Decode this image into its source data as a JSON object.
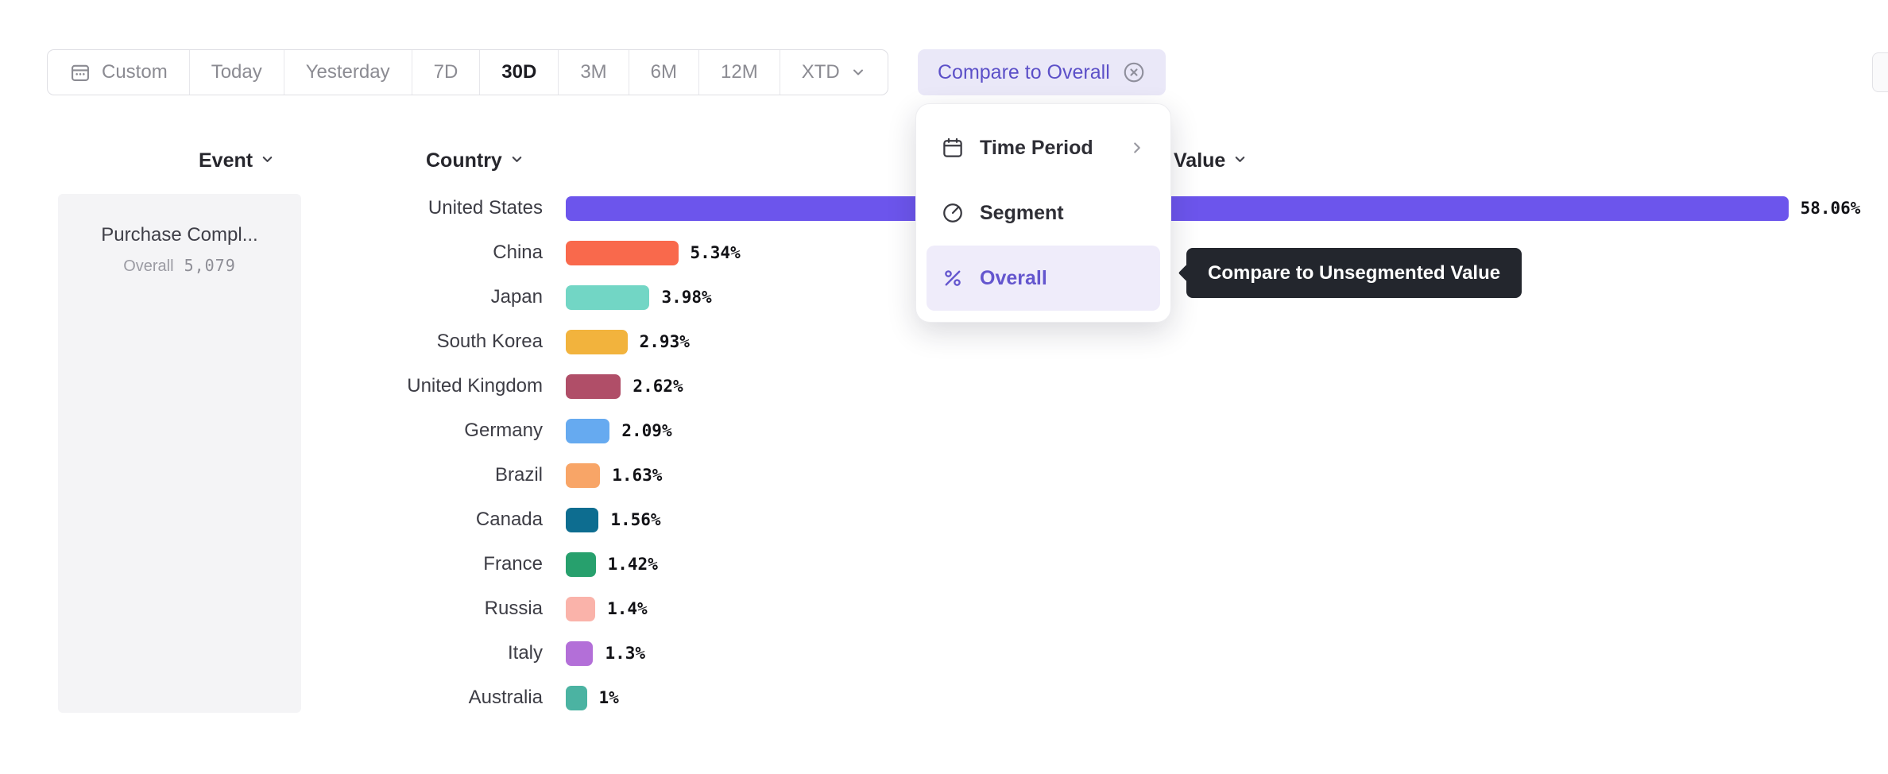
{
  "colors": {
    "accent": "#6456ce",
    "compare_text": "#5c50c8",
    "tooltip_bg": "#23262d",
    "us_bar": "#6c55ec"
  },
  "toolbar": {
    "date_ranges": [
      {
        "label": "Custom",
        "icon": "calendar-icon",
        "selected": false
      },
      {
        "label": "Today",
        "selected": false
      },
      {
        "label": "Yesterday",
        "selected": false
      },
      {
        "label": "7D",
        "selected": false
      },
      {
        "label": "30D",
        "selected": true
      },
      {
        "label": "3M",
        "selected": false
      },
      {
        "label": "6M",
        "selected": false
      },
      {
        "label": "12M",
        "selected": false
      },
      {
        "label": "XTD",
        "icon": "chevron-down-icon",
        "selected": false
      }
    ],
    "compare_button": {
      "label": "Compare to Overall",
      "icon": "circle-x-icon"
    }
  },
  "dropdown": {
    "items": [
      {
        "label": "Time Period",
        "icon": "calendar-icon",
        "has_submenu": true,
        "selected": false
      },
      {
        "label": "Segment",
        "icon": "segment-icon",
        "selected": false
      },
      {
        "label": "Overall",
        "icon": "percent-icon",
        "selected": true
      }
    ]
  },
  "tooltip": {
    "text": "Compare to Unsegmented Value"
  },
  "event_panel": {
    "header": "Event",
    "event_name": "Purchase Compl...",
    "overall_label": "Overall",
    "overall_value": "5,079"
  },
  "breakdown": {
    "country_header": "Country",
    "value_header": "Value",
    "rows": [
      {
        "country": "United States",
        "value": 58.06,
        "display": "58.06%",
        "color": "#6c55ec"
      },
      {
        "country": "China",
        "value": 5.34,
        "display": "5.34%",
        "color": "#f9694c"
      },
      {
        "country": "Japan",
        "value": 3.98,
        "display": "3.98%",
        "color": "#72d6c5"
      },
      {
        "country": "South Korea",
        "value": 2.93,
        "display": "2.93%",
        "color": "#f2b33d"
      },
      {
        "country": "United Kingdom",
        "value": 2.62,
        "display": "2.62%",
        "color": "#b04e68"
      },
      {
        "country": "Germany",
        "value": 2.09,
        "display": "2.09%",
        "color": "#66aaf0"
      },
      {
        "country": "Brazil",
        "value": 1.63,
        "display": "1.63%",
        "color": "#f8a567"
      },
      {
        "country": "Canada",
        "value": 1.56,
        "display": "1.56%",
        "color": "#0d6d90"
      },
      {
        "country": "France",
        "value": 1.42,
        "display": "1.42%",
        "color": "#27a06d"
      },
      {
        "country": "Russia",
        "value": 1.4,
        "display": "1.4%",
        "color": "#fab3aa"
      },
      {
        "country": "Italy",
        "value": 1.3,
        "display": "1.3%",
        "color": "#b36fd8"
      },
      {
        "country": "Australia",
        "value": 1.0,
        "display": "1%",
        "color": "#4bb3a2"
      }
    ]
  },
  "chart_data": {
    "type": "bar",
    "orientation": "horizontal",
    "title": "",
    "xlabel": "Value",
    "ylabel": "Country",
    "categories": [
      "United States",
      "China",
      "Japan",
      "South Korea",
      "United Kingdom",
      "Germany",
      "Brazil",
      "Canada",
      "France",
      "Russia",
      "Italy",
      "Australia"
    ],
    "values": [
      58.06,
      5.34,
      3.98,
      2.93,
      2.62,
      2.09,
      1.63,
      1.56,
      1.42,
      1.4,
      1.3,
      1.0
    ],
    "value_labels": [
      "58.06%",
      "5.34%",
      "3.98%",
      "2.93%",
      "2.62%",
      "2.09%",
      "1.63%",
      "1.56%",
      "1.42%",
      "1.4%",
      "1.3%",
      "1%"
    ],
    "xlim": [
      0,
      62
    ],
    "grid": false,
    "legend": false
  }
}
